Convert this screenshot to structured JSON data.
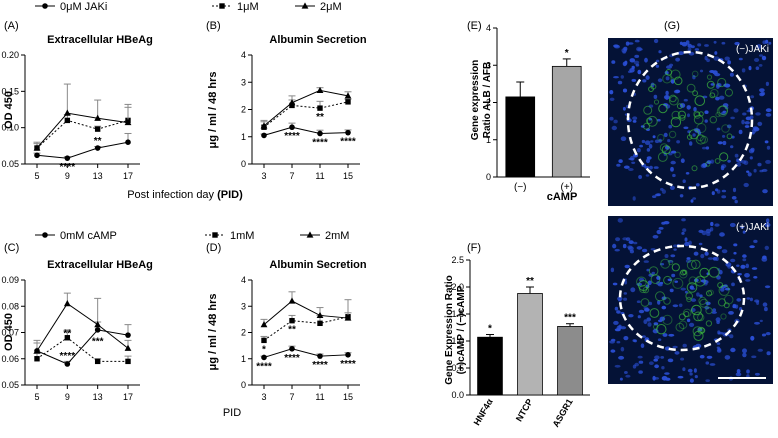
{
  "legend_top": {
    "items": [
      {
        "label": "0μM JAKi",
        "marker": "circle",
        "dash": false
      },
      {
        "label": "1μM",
        "marker": "square",
        "dash": true
      },
      {
        "label": "2μM",
        "marker": "triangle",
        "dash": false
      }
    ]
  },
  "legend_bottom": {
    "items": [
      {
        "label": "0mM cAMP",
        "marker": "circle",
        "dash": false
      },
      {
        "label": "1mM",
        "marker": "square",
        "dash": true
      },
      {
        "label": "2mM",
        "marker": "triangle",
        "dash": false
      }
    ]
  },
  "xlabel_top": {
    "prefix": "Post infection day ",
    "bold": "(PID)"
  },
  "xlabel_bottom": "PID",
  "chart_data": [
    {
      "panel": "(A)",
      "type": "line",
      "title": "Extracellular HBeAg",
      "ylabel": "OD 450",
      "xlabel": "",
      "ylim": [
        0.05,
        0.2
      ],
      "yticks": [
        "0.05",
        "0.10",
        "0.15",
        "0.20"
      ],
      "ytick_values": [
        0.05,
        0.1,
        0.15,
        0.2
      ],
      "x": [
        5,
        9,
        13,
        17
      ],
      "xticks": [
        "5",
        "9",
        "13",
        "17"
      ],
      "series": [
        {
          "name": "0μM JAKi",
          "marker": "circle",
          "dash": false,
          "values": [
            0.062,
            0.058,
            0.072,
            0.08
          ],
          "err": [
            0.003,
            0.002,
            0.002,
            0.012
          ]
        },
        {
          "name": "1μM",
          "marker": "square",
          "dash": true,
          "values": [
            0.072,
            0.11,
            0.098,
            0.11
          ],
          "err": [
            0.006,
            0.008,
            0.004,
            0.018
          ]
        },
        {
          "name": "2μM",
          "marker": "triangle",
          "dash": false,
          "values": [
            0.072,
            0.12,
            0.113,
            0.107
          ],
          "err": [
            0.008,
            0.04,
            0.025,
            0.025
          ]
        }
      ],
      "annotations": [
        {
          "text": "****",
          "x": 9,
          "y": 0.058,
          "pos": "below"
        },
        {
          "text": "**",
          "x": 13,
          "y": 0.072,
          "pos": "above"
        }
      ]
    },
    {
      "panel": "(B)",
      "type": "line",
      "title": "Albumin Secretion",
      "ylabel": "μg / ml / 48 hrs",
      "xlabel": "",
      "ylim": [
        0,
        4
      ],
      "yticks": [
        "0",
        "1",
        "2",
        "3",
        "4"
      ],
      "ytick_values": [
        0,
        1,
        2,
        3,
        4
      ],
      "x": [
        3,
        7,
        11,
        15
      ],
      "xticks": [
        "3",
        "7",
        "11",
        "15"
      ],
      "series": [
        {
          "name": "0μM JAKi",
          "marker": "circle",
          "dash": false,
          "values": [
            1.05,
            1.35,
            1.12,
            1.15
          ],
          "err": [
            0.05,
            0.15,
            0.12,
            0.1
          ]
        },
        {
          "name": "1μM",
          "marker": "square",
          "dash": true,
          "values": [
            1.35,
            2.15,
            2.05,
            2.28
          ],
          "err": [
            0.2,
            0.2,
            0.25,
            0.1
          ]
        },
        {
          "name": "2μM",
          "marker": "triangle",
          "dash": false,
          "values": [
            1.4,
            2.25,
            2.7,
            2.5
          ],
          "err": [
            0.2,
            0.25,
            0.1,
            0.15
          ]
        }
      ],
      "annotations": [
        {
          "text": "****",
          "x": 7,
          "y": 1.35,
          "pos": "below"
        },
        {
          "text": "**",
          "x": 11,
          "y": 2.05,
          "pos": "below"
        },
        {
          "text": "****",
          "x": 11,
          "y": 1.12,
          "pos": "below"
        },
        {
          "text": "****",
          "x": 15,
          "y": 1.15,
          "pos": "below"
        }
      ]
    },
    {
      "panel": "(E)",
      "type": "bar",
      "title": "",
      "ylabel": "Gene expression Ratio ALB / AFB",
      "xlabel": "cAMP",
      "ylim": [
        0,
        4
      ],
      "yticks": [
        "0",
        "1",
        "2",
        "3",
        "4"
      ],
      "ytick_values": [
        0,
        1,
        2,
        3,
        4
      ],
      "categories": [
        "(−)",
        "(+)"
      ],
      "values": [
        2.15,
        2.97
      ],
      "err": [
        0.4,
        0.2
      ],
      "colors": [
        "#000000",
        "#a6a6a6"
      ],
      "annotations": [
        {
          "text": "*",
          "category": "(+)"
        }
      ]
    },
    {
      "panel": "(C)",
      "type": "line",
      "title": "Extracellular HBeAg",
      "ylabel": "OD 450",
      "xlabel": "PID",
      "ylim": [
        0.05,
        0.09
      ],
      "yticks": [
        "0.05",
        "0.06",
        "0.07",
        "0.08",
        "0.09"
      ],
      "ytick_values": [
        0.05,
        0.06,
        0.07,
        0.08,
        0.09
      ],
      "x": [
        5,
        9,
        13,
        17
      ],
      "xticks": [
        "5",
        "9",
        "13",
        "17"
      ],
      "series": [
        {
          "name": "0mM cAMP",
          "marker": "circle",
          "dash": false,
          "values": [
            0.063,
            0.058,
            0.071,
            0.069
          ],
          "err": [
            0.003,
            0.001,
            0.003,
            0.004
          ]
        },
        {
          "name": "1mM",
          "marker": "square",
          "dash": true,
          "values": [
            0.06,
            0.068,
            0.059,
            0.059
          ],
          "err": [
            0.002,
            0.003,
            0.001,
            0.002
          ]
        },
        {
          "name": "2mM",
          "marker": "triangle",
          "dash": false,
          "values": [
            0.063,
            0.081,
            0.073,
            0.064
          ],
          "err": [
            0.004,
            0.004,
            0.01,
            0.003
          ]
        }
      ],
      "annotations": [
        {
          "text": "**",
          "x": 9,
          "y": 0.07,
          "pos": "text"
        },
        {
          "text": "****",
          "x": 9,
          "y": 0.0615,
          "pos": "text"
        },
        {
          "text": "***",
          "x": 13,
          "y": 0.067,
          "pos": "text"
        }
      ]
    },
    {
      "panel": "(D)",
      "type": "line",
      "title": "Albumin Secretion",
      "ylabel": "μg / ml / 48 hrs",
      "xlabel": "PID",
      "ylim": [
        0,
        4
      ],
      "yticks": [
        "0",
        "1",
        "2",
        "3",
        "4"
      ],
      "ytick_values": [
        0,
        1,
        2,
        3,
        4
      ],
      "x": [
        3,
        7,
        11,
        15
      ],
      "xticks": [
        "3",
        "7",
        "11",
        "15"
      ],
      "series": [
        {
          "name": "0mM cAMP",
          "marker": "circle",
          "dash": false,
          "values": [
            1.05,
            1.38,
            1.1,
            1.15
          ],
          "err": [
            0.05,
            0.1,
            0.08,
            0.08
          ]
        },
        {
          "name": "1mM",
          "marker": "square",
          "dash": true,
          "values": [
            1.7,
            2.45,
            2.35,
            2.6
          ],
          "err": [
            0.15,
            0.2,
            0.3,
            0.15
          ]
        },
        {
          "name": "2mM",
          "marker": "triangle",
          "dash": false,
          "values": [
            2.3,
            3.2,
            2.65,
            2.55
          ],
          "err": [
            0.2,
            0.35,
            0.3,
            0.7
          ]
        }
      ],
      "annotations": [
        {
          "text": "*",
          "x": 3,
          "y": 1.7,
          "pos": "below"
        },
        {
          "text": "****",
          "x": 3,
          "y": 1.05,
          "pos": "below"
        },
        {
          "text": "**",
          "x": 7,
          "y": 2.45,
          "pos": "below"
        },
        {
          "text": "****",
          "x": 7,
          "y": 1.38,
          "pos": "below"
        },
        {
          "text": "****",
          "x": 11,
          "y": 1.1,
          "pos": "below"
        },
        {
          "text": "****",
          "x": 15,
          "y": 1.15,
          "pos": "below"
        }
      ]
    },
    {
      "panel": "(F)",
      "type": "bar",
      "title": "",
      "ylabel": "Gene Expression Ratio (+)cAMP / (−)cAMP",
      "xlabel": "",
      "ylim": [
        0,
        2.5
      ],
      "yticks": [
        "0.0",
        "0.5",
        "1.0",
        "1.5",
        "2.0",
        "2.5"
      ],
      "ytick_values": [
        0,
        0.5,
        1.0,
        1.5,
        2.0,
        2.5
      ],
      "categories": [
        "HNF4α",
        "NTCP",
        "ASGR1"
      ],
      "values": [
        1.07,
        1.88,
        1.27
      ],
      "err": [
        0.05,
        0.12,
        0.05
      ],
      "colors": [
        "#000000",
        "#b3b3b3",
        "#8c8c8c"
      ],
      "annotations": [
        {
          "text": "*",
          "category": "HNF4α"
        },
        {
          "text": "**",
          "category": "NTCP"
        },
        {
          "text": "***",
          "category": "ASGR1"
        }
      ]
    }
  ],
  "micrographs": {
    "panel": "(G)",
    "top_label": "(−)JAKi",
    "bottom_label": "(+)JAKi",
    "background_color": "#041236",
    "nuclei_color": "#2a4fd6",
    "signal_color": "#3fbf3f"
  }
}
